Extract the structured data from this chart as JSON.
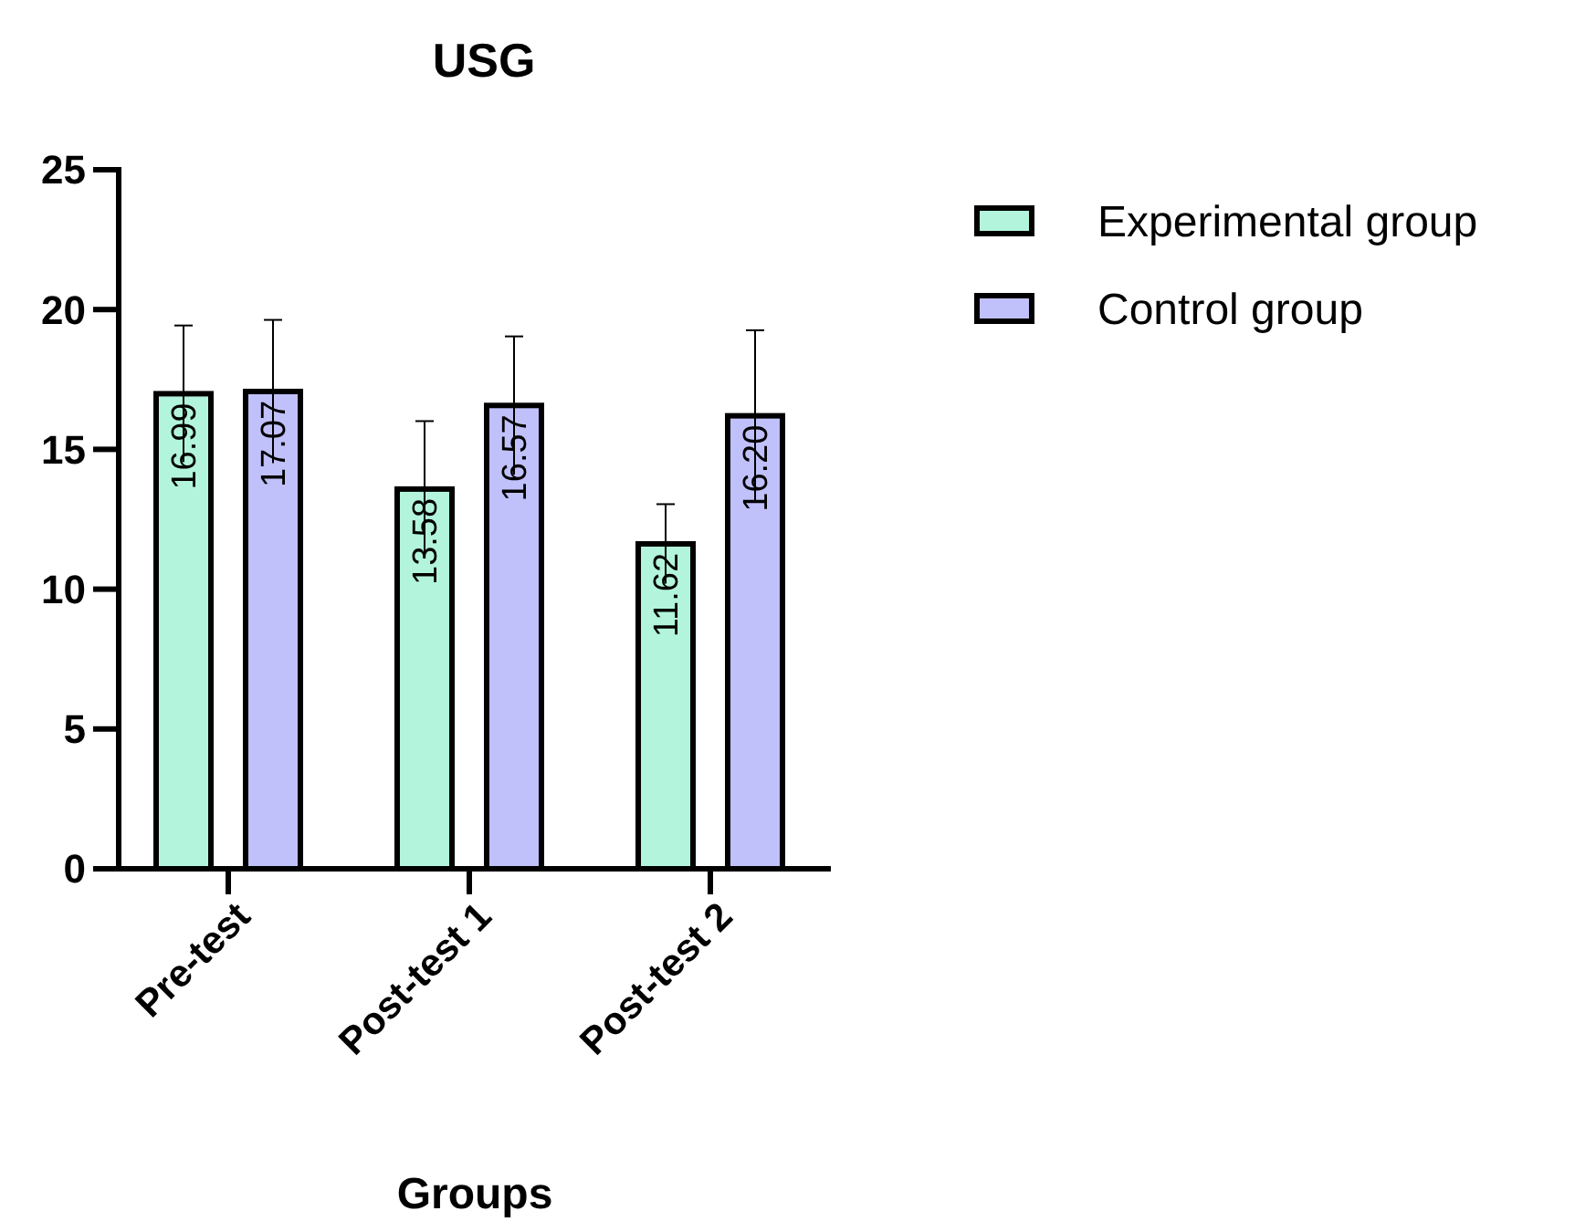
{
  "chart_data": {
    "type": "bar",
    "title": "USG",
    "xlabel": "Groups",
    "categories": [
      "Pre-test",
      "Post-test 1",
      "Post-test 2"
    ],
    "series": [
      {
        "name": "Experimental group",
        "color": "#b3f5dc",
        "values": [
          16.99,
          13.58,
          11.62
        ],
        "value_labels": [
          "16.99",
          "13.58",
          "11.62"
        ],
        "errors": [
          2.44,
          2.43,
          1.42
        ]
      },
      {
        "name": "Control group",
        "color": "#c0c0fa",
        "values": [
          17.07,
          16.57,
          16.2
        ],
        "value_labels": [
          "17.07",
          "16.57",
          "16.20"
        ],
        "errors": [
          2.56,
          2.47,
          3.06
        ]
      }
    ],
    "ylim": [
      0,
      25
    ],
    "yticks": [
      0,
      5,
      10,
      15,
      20,
      25
    ],
    "legend": "top right",
    "grid": false
  }
}
